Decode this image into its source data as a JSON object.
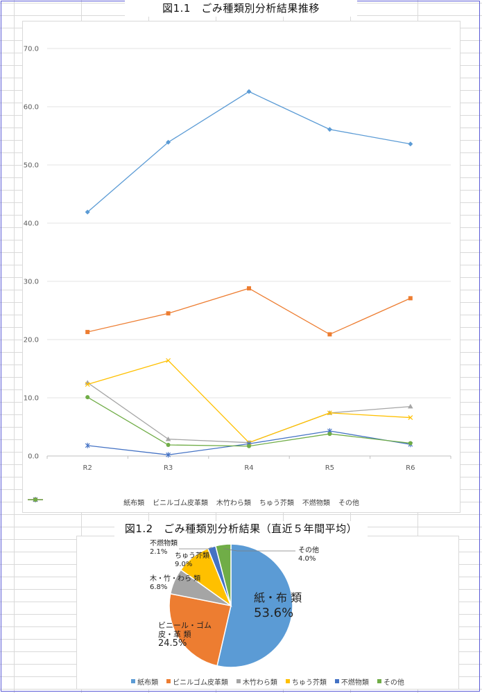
{
  "chart_data": [
    {
      "type": "line",
      "title": "図1.1　ごみ種類別分析結果推移",
      "categories": [
        "R2",
        "R3",
        "R4",
        "R5",
        "R6"
      ],
      "ylim": [
        0,
        70
      ],
      "yticks": [
        "0.0",
        "10.0",
        "20.0",
        "30.0",
        "40.0",
        "50.0",
        "60.0",
        "70.0"
      ],
      "grid": true,
      "legend_position": "bottom",
      "series": [
        {
          "name": "紙布類",
          "color": "#5b9bd5",
          "marker": "diamond",
          "values": [
            41.9,
            53.9,
            62.6,
            56.1,
            53.6
          ]
        },
        {
          "name": "ビニルゴム皮革類",
          "color": "#ed7d31",
          "marker": "square",
          "values": [
            21.3,
            24.5,
            28.8,
            20.9,
            27.1
          ]
        },
        {
          "name": "木竹わら類",
          "color": "#a5a5a5",
          "marker": "triangle",
          "values": [
            12.6,
            2.9,
            2.3,
            7.4,
            8.5
          ]
        },
        {
          "name": "ちゅう芥類",
          "color": "#ffc000",
          "marker": "x",
          "values": [
            12.3,
            16.4,
            2.3,
            7.4,
            6.6
          ]
        },
        {
          "name": "不燃物類",
          "color": "#4472c4",
          "marker": "star",
          "values": [
            1.8,
            0.2,
            2.1,
            4.3,
            2.0
          ]
        },
        {
          "name": "その他",
          "color": "#70ad47",
          "marker": "circle",
          "values": [
            10.1,
            1.9,
            1.7,
            3.8,
            2.2
          ]
        }
      ]
    },
    {
      "type": "pie",
      "title": "図1.2　ごみ種類別分析結果（直近５年間平均）",
      "legend_position": "bottom",
      "slices": [
        {
          "name": "紙布類",
          "label": [
            "紙・布 類"
          ],
          "value": 53.6,
          "value_text": "53.6%",
          "color": "#5b9bd5"
        },
        {
          "name": "ビニルゴム皮革類",
          "label": [
            "ビニール・ゴム",
            "皮・革 類"
          ],
          "value": 24.5,
          "value_text": "24.5%",
          "color": "#ed7d31"
        },
        {
          "name": "木竹わら類",
          "label": [
            "木・竹・わら 類"
          ],
          "value": 6.8,
          "value_text": "6.8%",
          "color": "#a5a5a5"
        },
        {
          "name": "ちゅう芥類",
          "label": [
            "ちゅう芥類"
          ],
          "value": 9.0,
          "value_text": "9.0%",
          "color": "#ffc000"
        },
        {
          "name": "不燃物類",
          "label": [
            "不燃物類"
          ],
          "value": 2.1,
          "value_text": "2.1%",
          "color": "#4472c4"
        },
        {
          "name": "その他",
          "label": [
            "その他"
          ],
          "value": 4.0,
          "value_text": "4.0%",
          "color": "#70ad47"
        }
      ]
    }
  ]
}
